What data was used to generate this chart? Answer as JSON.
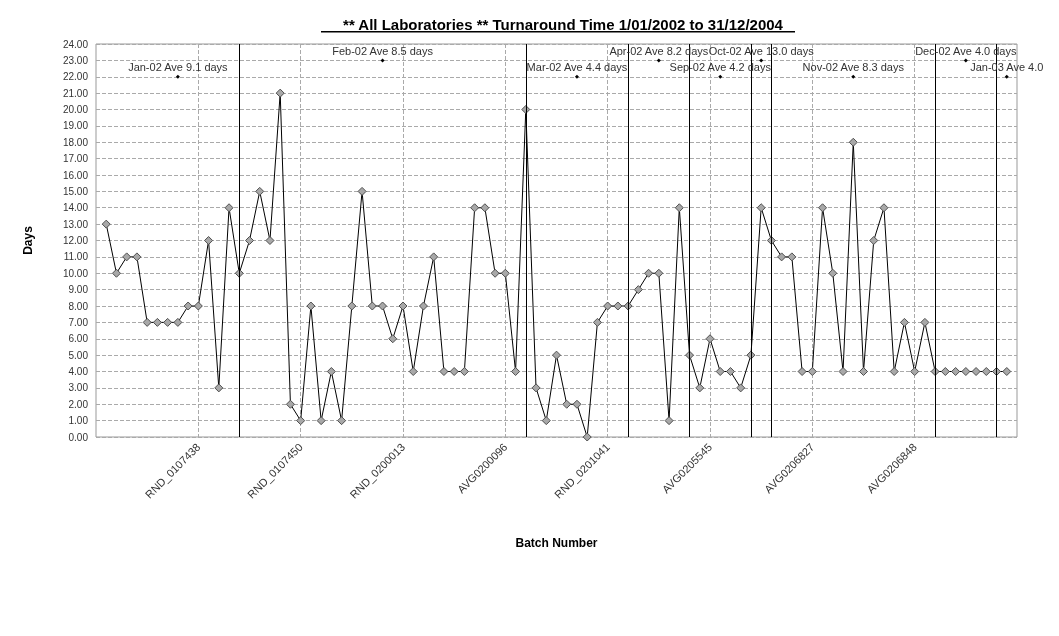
{
  "chart_data": {
    "type": "line",
    "title": "** All Laboratories ** Turnaround Time 1/01/2002 to 31/12/2004",
    "xlabel": "Batch Number",
    "ylabel": "Days",
    "categories": [
      null,
      null,
      null,
      null,
      null,
      null,
      null,
      null,
      null,
      "RND_0107438",
      null,
      null,
      null,
      null,
      null,
      null,
      null,
      null,
      null,
      "RND_0107450",
      null,
      null,
      null,
      null,
      null,
      null,
      null,
      null,
      null,
      "RND_0200013",
      null,
      null,
      null,
      null,
      null,
      null,
      null,
      null,
      null,
      "AVG0200096",
      null,
      null,
      null,
      null,
      null,
      null,
      null,
      null,
      null,
      "RND_0201041",
      null,
      null,
      null,
      null,
      null,
      null,
      null,
      null,
      null,
      "AVG0205545",
      null,
      null,
      null,
      null,
      null,
      null,
      null,
      null,
      null,
      "AVG0206827",
      null,
      null,
      null,
      null,
      null,
      null,
      null,
      null,
      null,
      "AVG0206848",
      null,
      null,
      null,
      null,
      null,
      null,
      null,
      null,
      null
    ],
    "series": [
      {
        "color": "#000000",
        "values": [
          13,
          10,
          11,
          11,
          7,
          7,
          7,
          7,
          8,
          8,
          12,
          3,
          14,
          10,
          12,
          15,
          12,
          21,
          2,
          1,
          8,
          1,
          4,
          1,
          8,
          15,
          8,
          8,
          6,
          8,
          4,
          8,
          11,
          4,
          4,
          4,
          14,
          14,
          10,
          10,
          4,
          20,
          3,
          1,
          5,
          2,
          2,
          0,
          7,
          8,
          8,
          8,
          9,
          10,
          10,
          1,
          14,
          5,
          3,
          6,
          4,
          4,
          3,
          5,
          14,
          12,
          11,
          11,
          4,
          4,
          14,
          10,
          4,
          18,
          4,
          12,
          14,
          4,
          7,
          4,
          7,
          4,
          4,
          4,
          4,
          4,
          4,
          4,
          4
        ]
      }
    ],
    "ylim": [
      0,
      24
    ],
    "yticks": [
      {
        "value": 0,
        "label": "0.00"
      },
      {
        "value": 1,
        "label": "1.00"
      },
      {
        "value": 2,
        "label": "2.00"
      },
      {
        "value": 3,
        "label": "3.00"
      },
      {
        "value": 4,
        "label": "4.00"
      },
      {
        "value": 5,
        "label": "5.00"
      },
      {
        "value": 6,
        "label": "6.00"
      },
      {
        "value": 7,
        "label": "7.00"
      },
      {
        "value": 8,
        "label": "8.00"
      },
      {
        "value": 9,
        "label": "9.00"
      },
      {
        "value": 10,
        "label": "10.00"
      },
      {
        "value": 11,
        "label": "11.00"
      },
      {
        "value": 12,
        "label": "12.00"
      },
      {
        "value": 13,
        "label": "13.00"
      },
      {
        "value": 14,
        "label": "14.00"
      },
      {
        "value": 15,
        "label": "15.00"
      },
      {
        "value": 16,
        "label": "16.00"
      },
      {
        "value": 17,
        "label": "17.00"
      },
      {
        "value": 18,
        "label": "18.00"
      },
      {
        "value": 19,
        "label": "19.00"
      },
      {
        "value": 20,
        "label": "20.00"
      },
      {
        "value": 21,
        "label": "21.00"
      },
      {
        "value": 22,
        "label": "22.00"
      },
      {
        "value": 23,
        "label": "23.00"
      },
      {
        "value": 24,
        "label": "24.00"
      }
    ],
    "annotations": [
      {
        "text": "Jan-02 Ave 9.1 days",
        "y": 22
      },
      {
        "text": "Feb-02 Ave 8.5 days",
        "y": 23
      },
      {
        "text": "Mar-02 Ave 4.4 days",
        "y": 22
      },
      {
        "text": "Apr-02 Ave 8.2 days",
        "y": 23
      },
      {
        "text": "Sep-02 Ave 4.2 days",
        "y": 22
      },
      {
        "text": "Oct-02 Ave 13.0 days",
        "y": 23
      },
      {
        "text": "Nov-02 Ave 8.3 days",
        "y": 22
      },
      {
        "text": "Dec-02 Ave 4.0 days",
        "y": 23
      },
      {
        "text": "Jan-03 Ave 4.0",
        "y": 22
      }
    ],
    "grid": true,
    "marker": "diamond",
    "line_style": "solid"
  }
}
